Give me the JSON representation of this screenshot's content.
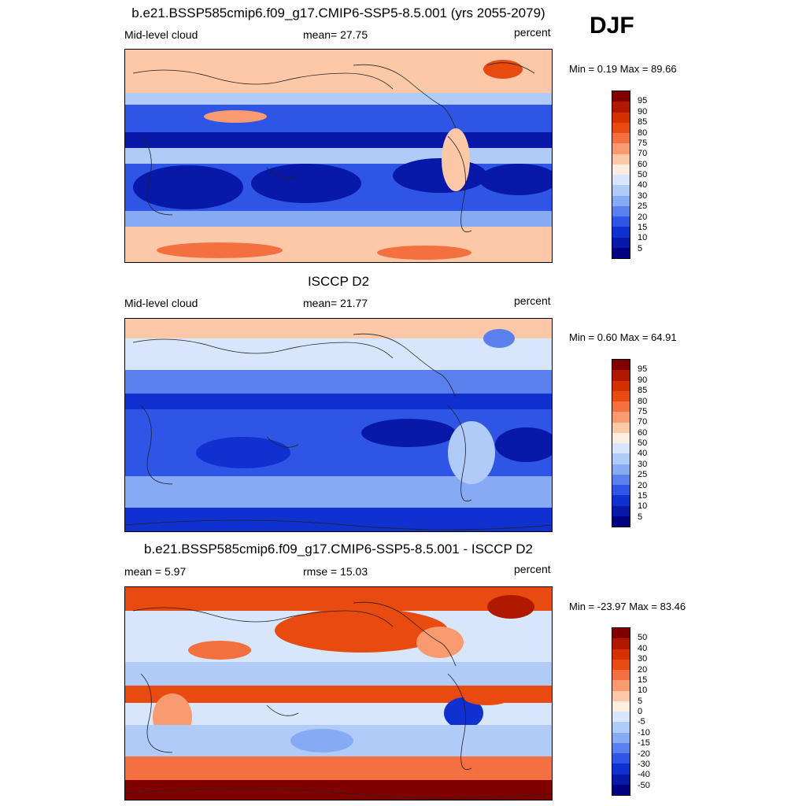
{
  "season": "DJF",
  "panels": [
    {
      "title": "b.e21.BSSP585cmip6.f09_g17.CMIP6-SSP5-8.5.001 (yrs 2055-2079)",
      "left": "Mid-level cloud",
      "center": "mean=  27.75",
      "units": "percent",
      "minmax": "Min =   0.19 Max =  89.66",
      "scale": "abs"
    },
    {
      "title": "ISCCP D2",
      "left": "Mid-level cloud",
      "center": "mean=  21.77",
      "units": "percent",
      "minmax": "Min =   0.60 Max =  64.91",
      "scale": "abs"
    },
    {
      "title": "b.e21.BSSP585cmip6.f09_g17.CMIP6-SSP5-8.5.001 - ISCCP D2",
      "left": "mean =   5.97",
      "center": "rmse =  15.03",
      "units": "percent",
      "minmax": "Min = -23.97 Max =  83.46",
      "scale": "diff"
    }
  ],
  "colorbars": {
    "abs_levels": [
      "95",
      "90",
      "85",
      "80",
      "75",
      "70",
      "60",
      "50",
      "40",
      "30",
      "25",
      "20",
      "15",
      "10",
      "5"
    ],
    "diff_levels": [
      "50",
      "40",
      "30",
      "20",
      "15",
      "10",
      "5",
      "0",
      "-5",
      "-10",
      "-15",
      "-20",
      "-30",
      "-40",
      "-50"
    ],
    "colors": [
      "#800000",
      "#b01800",
      "#d43000",
      "#e84a10",
      "#f47040",
      "#f99a70",
      "#fcc8a8",
      "#fdece0",
      "#d8e6fc",
      "#b0cbf8",
      "#86aaf4",
      "#5a80ee",
      "#2f55e6",
      "#1030d0",
      "#0818a8",
      "#000080"
    ]
  }
}
